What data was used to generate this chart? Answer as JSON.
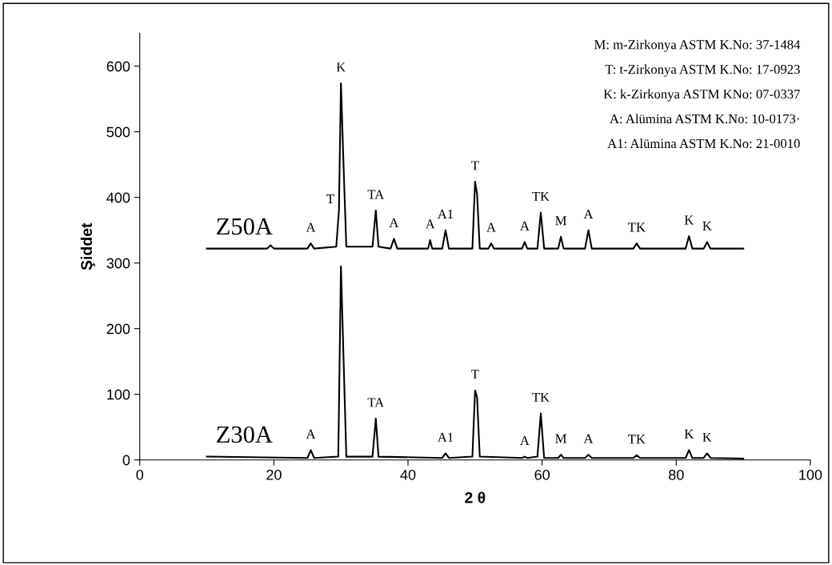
{
  "chart_data": {
    "type": "line",
    "xlabel": "2 θ",
    "ylabel": "Şiddet",
    "xlim": [
      0,
      100
    ],
    "xticks": [
      0,
      20,
      40,
      60,
      80,
      100
    ],
    "ylim": [
      0,
      650
    ],
    "yticks": [
      0,
      100,
      200,
      300,
      400,
      500,
      600
    ],
    "grid": false,
    "legend": false,
    "marker": "none",
    "line_style": "solid",
    "series": [
      {
        "name": "Z50A",
        "color": "#000000",
        "x": [
          10,
          15,
          19,
          19.5,
          20,
          25,
          25.5,
          26,
          29.3,
          29.7,
          30.0,
          30.4,
          30.8,
          34.7,
          35.2,
          35.6,
          37.4,
          37.9,
          38.4,
          43.0,
          43.3,
          43.6,
          45.1,
          45.6,
          46.1,
          49.6,
          50.0,
          50.3,
          50.7,
          52.0,
          52.4,
          52.8,
          57.0,
          57.4,
          57.8,
          59.3,
          59.8,
          60.3,
          62.4,
          62.8,
          63.2,
          66.4,
          66.9,
          67.4,
          73.6,
          74.1,
          74.6,
          81.4,
          81.9,
          82.4,
          84.1,
          84.6,
          85.1,
          90
        ],
        "values": [
          322,
          322,
          322,
          327,
          322,
          322,
          330,
          322,
          325,
          380,
          574,
          445,
          325,
          325,
          380,
          325,
          322,
          337,
          322,
          322,
          335,
          322,
          322,
          350,
          322,
          322,
          424,
          405,
          322,
          322,
          330,
          322,
          322,
          332,
          322,
          322,
          377,
          322,
          322,
          340,
          322,
          322,
          350,
          322,
          322,
          330,
          322,
          322,
          341,
          322,
          322,
          332,
          322,
          322
        ]
      },
      {
        "name": "Z30A",
        "color": "#000000",
        "x": [
          10,
          25,
          25.5,
          26,
          29.6,
          30.0,
          30.4,
          30.8,
          34.7,
          35.2,
          35.6,
          45.1,
          45.6,
          46.1,
          49.6,
          50.0,
          50.3,
          50.7,
          57.0,
          57.4,
          57.8,
          59.3,
          59.8,
          60.3,
          62.4,
          62.8,
          63.2,
          66.4,
          66.9,
          67.4,
          73.6,
          74.1,
          74.6,
          81.4,
          81.9,
          82.4,
          84.1,
          84.6,
          85.1,
          90
        ],
        "values": [
          5,
          3,
          15,
          3,
          5,
          295,
          150,
          5,
          5,
          63,
          5,
          3,
          10,
          3,
          5,
          106,
          95,
          5,
          3,
          5,
          3,
          5,
          71,
          3,
          3,
          8,
          3,
          3,
          8,
          3,
          3,
          7,
          3,
          3,
          15,
          3,
          3,
          10,
          3,
          2
        ]
      }
    ],
    "annotations": [
      "M: m-Zirkonya ASTM K.No: 37-1484",
      "T: t-Zirkonya ASTM K.No: 17-0923",
      "K: k-Zirkonya ASTM KNo: 07-0337",
      "A: Alümina ASTM K.No: 10-0173·",
      "A1: Alümina ASTM K.No: 21-0010",
      {
        "text": "A",
        "x": 25.5,
        "y": 330
      },
      {
        "text": "T",
        "x": 29.7,
        "y": 380
      },
      {
        "text": "K",
        "x": 30.0,
        "y": 574
      },
      {
        "text": "TA",
        "x": 35.2,
        "y": 380
      },
      {
        "text": "A",
        "x": 37.9,
        "y": 337
      },
      {
        "text": "A",
        "x": 43.3,
        "y": 335
      },
      {
        "text": "A1",
        "x": 45.6,
        "y": 350
      },
      {
        "text": "T",
        "x": 50.0,
        "y": 424
      },
      {
        "text": "A",
        "x": 52.4,
        "y": 330
      },
      {
        "text": "A",
        "x": 57.4,
        "y": 332
      },
      {
        "text": "TK",
        "x": 59.8,
        "y": 377
      },
      {
        "text": "M",
        "x": 62.8,
        "y": 340
      },
      {
        "text": "A",
        "x": 66.9,
        "y": 350
      },
      {
        "text": "TK",
        "x": 74.1,
        "y": 330
      },
      {
        "text": "K",
        "x": 81.9,
        "y": 341
      },
      {
        "text": "K",
        "x": 84.6,
        "y": 332
      },
      {
        "text": "A",
        "x": 25.5,
        "y": 15
      },
      {
        "text": "TA",
        "x": 35.2,
        "y": 63
      },
      {
        "text": "A1",
        "x": 45.6,
        "y": 10
      },
      {
        "text": "T",
        "x": 50.0,
        "y": 106
      },
      {
        "text": "A",
        "x": 57.4,
        "y": 5
      },
      {
        "text": "TK",
        "x": 59.8,
        "y": 71
      },
      {
        "text": "M",
        "x": 62.8,
        "y": 8
      },
      {
        "text": "A",
        "x": 66.9,
        "y": 8
      },
      {
        "text": "TK",
        "x": 74.1,
        "y": 7
      },
      {
        "text": "K",
        "x": 81.9,
        "y": 15
      },
      {
        "text": "K",
        "x": 84.6,
        "y": 10
      }
    ]
  }
}
